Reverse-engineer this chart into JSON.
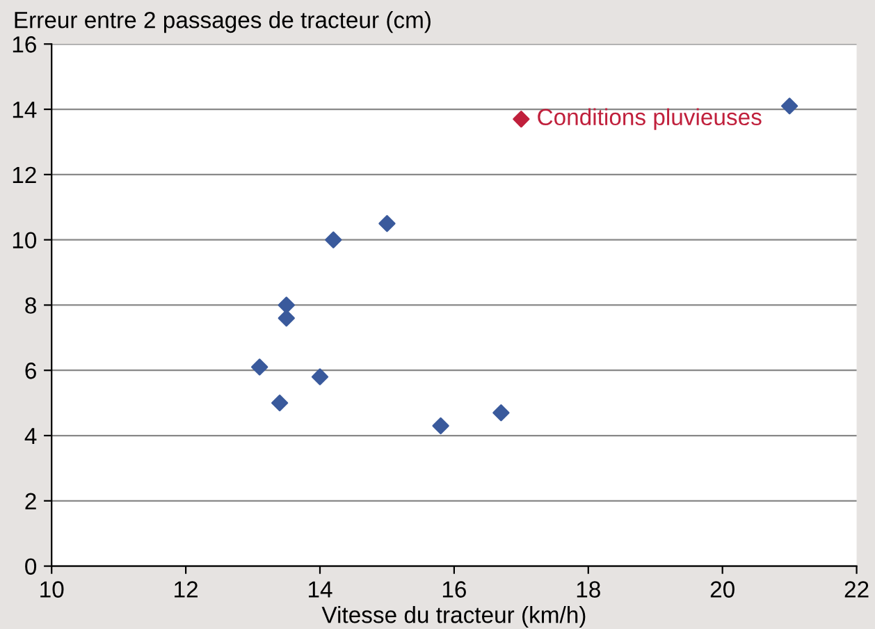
{
  "chart_data": {
    "type": "scatter",
    "xlabel": "Vitesse du tracteur (km/h)",
    "ylabel": "Erreur entre 2 passages de tracteur (cm)",
    "xlim": [
      10,
      22
    ],
    "xticks": [
      10,
      12,
      14,
      16,
      18,
      20,
      22
    ],
    "ylim": [
      0,
      16
    ],
    "yticks": [
      0,
      2,
      4,
      6,
      8,
      10,
      12,
      14,
      16
    ],
    "grid": "y",
    "marker": "diamond",
    "series": [
      {
        "color": "#3a5a9c",
        "x": [
          21,
          15,
          14.2,
          13.5,
          13.5,
          13.1,
          14.0,
          13.4,
          15.8,
          16.7
        ],
        "values": [
          14.1,
          10.5,
          10.0,
          8.0,
          7.6,
          6.1,
          5.8,
          5.0,
          4.3,
          4.7
        ]
      },
      {
        "name": "Conditions pluvieuses",
        "color": "#c0203c",
        "x": [
          17
        ],
        "values": [
          13.7
        ]
      }
    ]
  }
}
